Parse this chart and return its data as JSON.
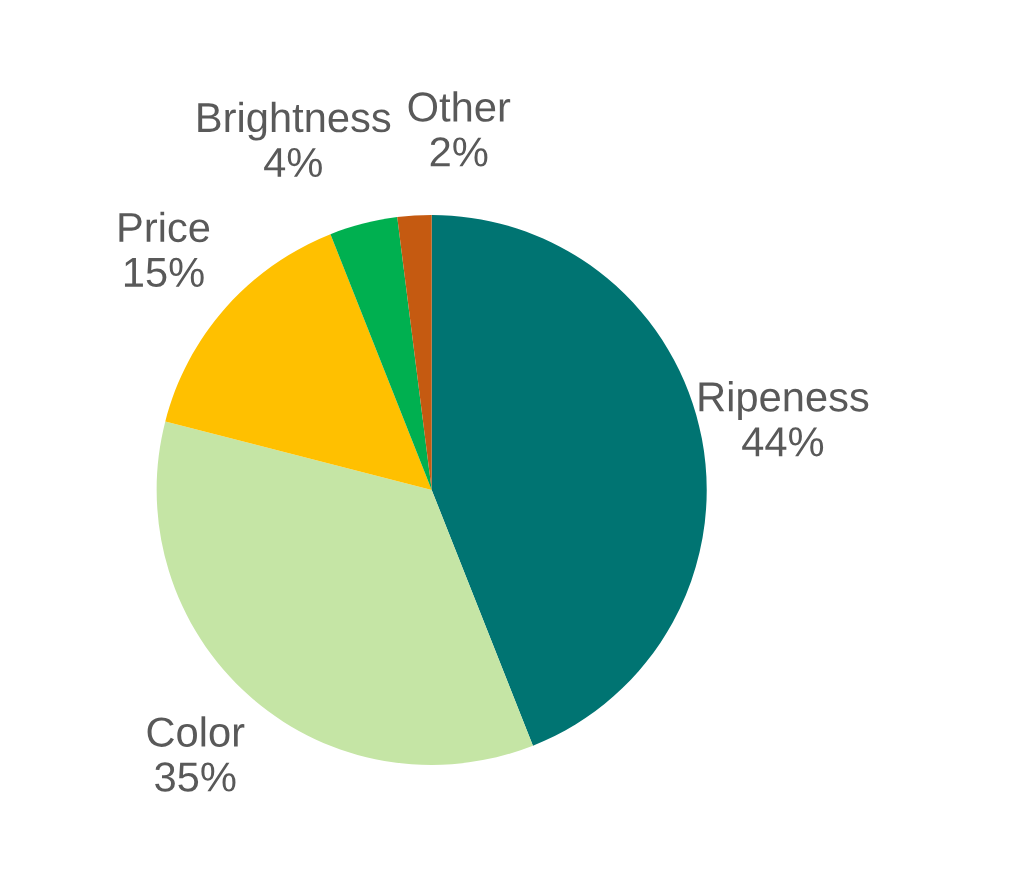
{
  "chart_data": {
    "type": "pie",
    "categories": [
      "Ripeness",
      "Color",
      "Price",
      "Brightness",
      "Other"
    ],
    "values": [
      44,
      35,
      15,
      4,
      2
    ],
    "value_labels": [
      "44%",
      "35%",
      "15%",
      "4%",
      "2%"
    ],
    "colors": [
      "#007472",
      "#c5e5a5",
      "#ffc000",
      "#00b050",
      "#c55a11"
    ]
  }
}
